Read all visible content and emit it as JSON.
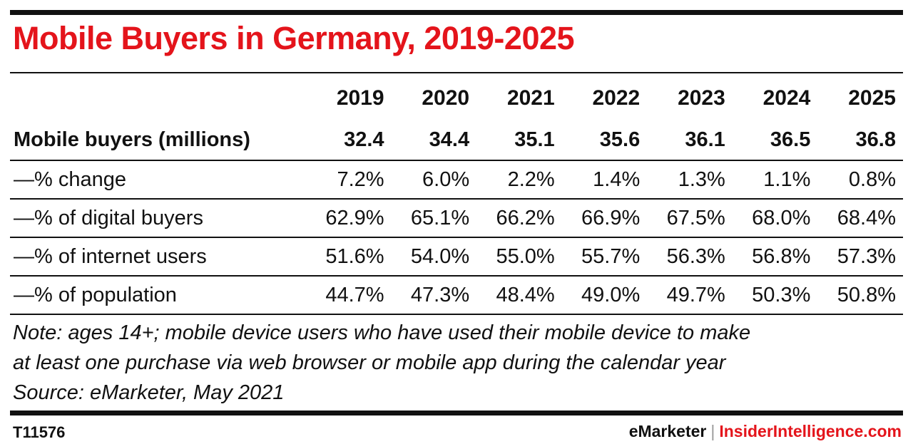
{
  "title": "Mobile Buyers in Germany, 2019-2025",
  "chart_data": {
    "type": "table",
    "title": "Mobile Buyers in Germany, 2019-2025",
    "columns": [
      "2019",
      "2020",
      "2021",
      "2022",
      "2023",
      "2024",
      "2025"
    ],
    "rows": [
      {
        "label": "Mobile buyers (millions)",
        "values": [
          "32.4",
          "34.4",
          "35.1",
          "35.6",
          "36.1",
          "36.5",
          "36.8"
        ]
      },
      {
        "label": "—% change",
        "values": [
          "7.2%",
          "6.0%",
          "2.2%",
          "1.4%",
          "1.3%",
          "1.1%",
          "0.8%"
        ]
      },
      {
        "label": "—% of digital buyers",
        "values": [
          "62.9%",
          "65.1%",
          "66.2%",
          "66.9%",
          "67.5%",
          "68.0%",
          "68.4%"
        ]
      },
      {
        "label": "—% of internet users",
        "values": [
          "51.6%",
          "54.0%",
          "55.0%",
          "55.7%",
          "56.3%",
          "56.8%",
          "57.3%"
        ]
      },
      {
        "label": "—% of population",
        "values": [
          "44.7%",
          "47.3%",
          "48.4%",
          "49.0%",
          "49.7%",
          "50.3%",
          "50.8%"
        ]
      }
    ]
  },
  "note_lines": [
    "Note: ages 14+; mobile device users who have used their mobile device to make",
    "at least one purchase via web browser or mobile app during the calendar year",
    "Source: eMarketer, May 2021"
  ],
  "footer": {
    "id": "T11576",
    "brand_left": "eMarketer",
    "separator": "|",
    "brand_right": "InsiderIntelligence.com"
  },
  "colors": {
    "accent": "#e4141b",
    "text": "#111111"
  }
}
